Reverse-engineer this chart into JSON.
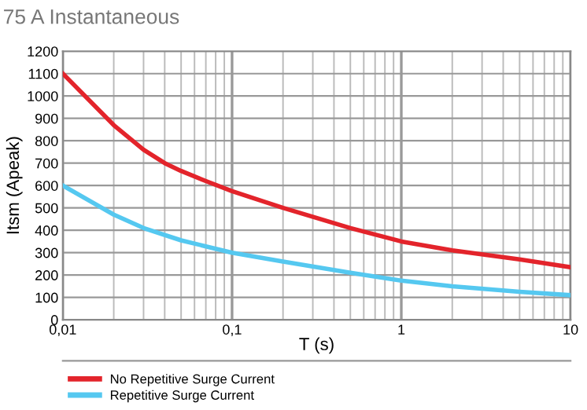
{
  "chart_data": {
    "type": "line",
    "title": "75 A Instantaneous",
    "xlabel": "T (s)",
    "ylabel": "Itsm (Apeak)",
    "log": "x",
    "grid": true,
    "legend": "bottom",
    "marker": "none",
    "line_style": "solid",
    "xlim": [
      0.01,
      10
    ],
    "xticks": [
      {
        "value": 0.01,
        "label": "0,01"
      },
      {
        "value": 0.1,
        "label": "0,1"
      },
      1,
      10
    ],
    "ylim": [
      0,
      1200
    ],
    "yticks": [
      0,
      100,
      200,
      300,
      400,
      500,
      600,
      700,
      800,
      900,
      1000,
      1100,
      1200
    ],
    "series": [
      {
        "name": "No Repetitive Surge Current",
        "color": "#e3242b",
        "x": [
          0.01,
          0.02,
          0.03,
          0.04,
          0.05,
          0.07,
          0.1,
          0.2,
          0.5,
          1,
          2,
          5,
          10
        ],
        "values": [
          1100,
          870,
          760,
          700,
          665,
          620,
          575,
          500,
          410,
          350,
          310,
          270,
          235
        ]
      },
      {
        "name": "Repetitive Surge Current",
        "color": "#55c8f0",
        "x": [
          0.01,
          0.02,
          0.03,
          0.05,
          0.1,
          0.2,
          0.5,
          1,
          2,
          5,
          10
        ],
        "values": [
          600,
          470,
          410,
          355,
          300,
          260,
          210,
          175,
          150,
          125,
          110
        ]
      }
    ]
  }
}
